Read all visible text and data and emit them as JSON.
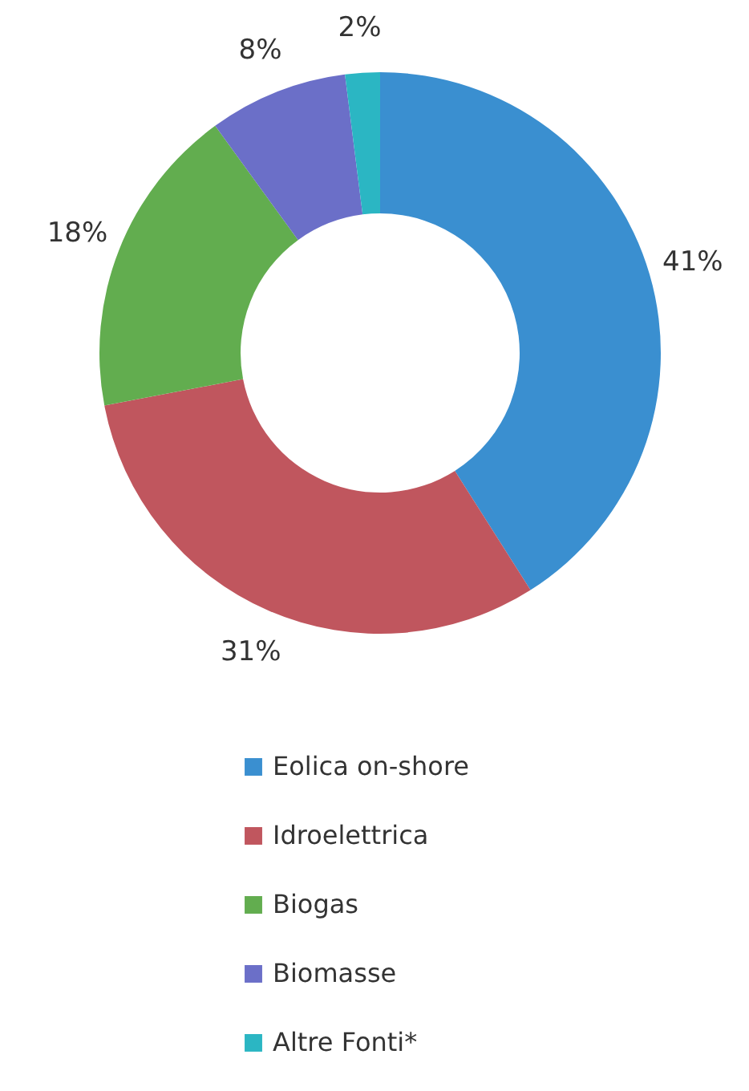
{
  "chart_data": {
    "type": "donut",
    "categories": [
      "Eolica on-shore",
      "Idroelettrica",
      "Biogas",
      "Biomasse",
      "Altre Fonti*"
    ],
    "values": [
      41,
      31,
      18,
      8,
      2
    ],
    "value_labels": [
      "41%",
      "31%",
      "18%",
      "8%",
      "2%"
    ],
    "colors": [
      "#3a8fd0",
      "#c0565e",
      "#62ad4f",
      "#6b6fc8",
      "#2bb6c3"
    ],
    "legend": "bottom"
  }
}
